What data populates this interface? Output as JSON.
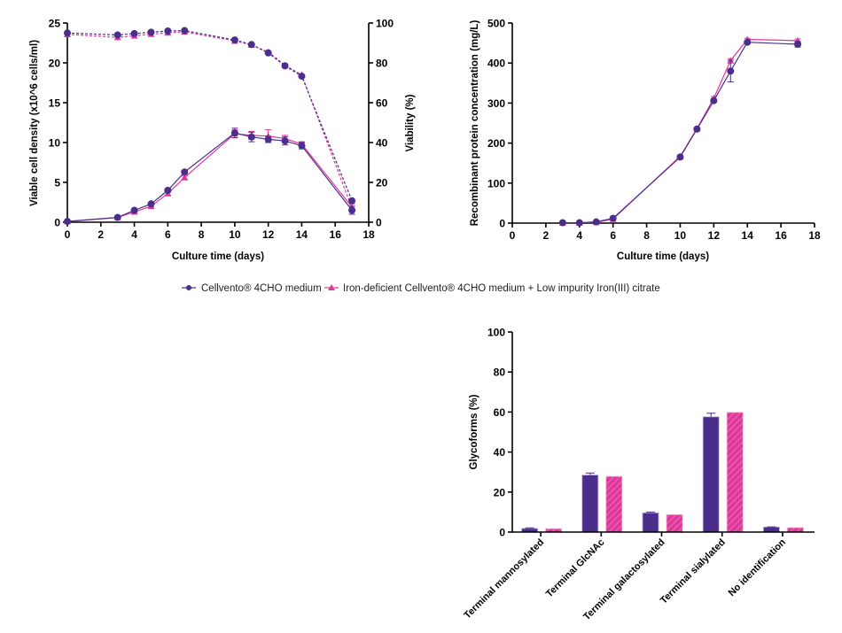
{
  "colors": {
    "series1": "#4b2d8c",
    "series2": "#e0379a",
    "series2_light": "#e97fbf"
  },
  "legend": {
    "placement": "center-middle",
    "items": [
      {
        "label": "Cellvento® 4CHO medium",
        "marker": "circle"
      },
      {
        "label": "Iron-deficient Cellvento® 4CHO medium + Low impurity Iron(III) citrate",
        "marker": "triangle"
      }
    ]
  },
  "chart_data": [
    {
      "type": "line",
      "title": "",
      "xlabel": "Culture time (days)",
      "ylabel": "Viable cell density (x10^6 cells/ml)",
      "y2label": "Viability (%)",
      "xlim": [
        0,
        18
      ],
      "ylim": [
        0,
        25
      ],
      "y2lim": [
        0,
        100
      ],
      "xticks": [
        0,
        2,
        4,
        6,
        8,
        10,
        12,
        14,
        16,
        18
      ],
      "yticks": [
        0,
        5,
        10,
        15,
        20,
        25
      ],
      "y2ticks": [
        0,
        20,
        40,
        60,
        80,
        100
      ],
      "grid": false,
      "x": [
        0,
        3,
        4,
        5,
        6,
        7,
        10,
        11,
        12,
        13,
        14,
        17
      ],
      "series": [
        {
          "name": "Cellvento® 4CHO medium - VCD",
          "axis": "left",
          "style": "solid",
          "marker": "circle",
          "values": [
            0.1,
            0.6,
            1.5,
            2.3,
            4.0,
            6.3,
            11.2,
            10.7,
            10.4,
            10.2,
            9.6,
            1.5
          ],
          "errors": [
            0,
            0.1,
            0.1,
            0.1,
            0.2,
            0.2,
            0.6,
            0.6,
            0.4,
            0.5,
            0.4,
            0.5
          ]
        },
        {
          "name": "Iron-deficient Cellvento® 4CHO medium + Low impurity Iron(III) citrate - VCD",
          "axis": "left",
          "style": "solid",
          "marker": "triangle",
          "values": [
            0.1,
            0.6,
            1.3,
            2.0,
            3.6,
            5.6,
            11.1,
            10.9,
            10.8,
            10.5,
            9.8,
            1.9
          ],
          "errors": [
            0,
            0.1,
            0.1,
            0.1,
            0.2,
            0.2,
            0.5,
            0.5,
            0.8,
            0.4,
            0.3,
            0.4
          ]
        },
        {
          "name": "Cellvento® 4CHO medium - Viability",
          "axis": "right",
          "style": "dashed",
          "marker": "circle",
          "values": [
            95.0,
            94.0,
            94.7,
            95.4,
            96.0,
            96.2,
            91.5,
            89.2,
            85.0,
            78.5,
            73.3,
            10.8
          ],
          "errors": [
            0,
            0,
            0,
            0,
            0,
            0,
            0,
            0,
            0,
            0,
            0,
            0
          ]
        },
        {
          "name": "Iron-deficient Cellvento® 4CHO medium + Low impurity Iron(III) citrate - Viability",
          "axis": "right",
          "style": "dashed",
          "marker": "triangle",
          "values": [
            94.3,
            92.8,
            93.6,
            94.4,
            95.1,
            95.6,
            91.0,
            89.0,
            85.5,
            78.8,
            74.0,
            7.0
          ],
          "errors": [
            0,
            0,
            0,
            0,
            0,
            0,
            0,
            0,
            0,
            0,
            0,
            0
          ]
        }
      ]
    },
    {
      "type": "line",
      "title": "",
      "xlabel": "Culture time (days)",
      "ylabel": "Recombinant protein concentration (mg/L)",
      "xlim": [
        0,
        18
      ],
      "ylim": [
        0,
        500
      ],
      "xticks": [
        0,
        2,
        4,
        6,
        8,
        10,
        12,
        14,
        16,
        18
      ],
      "yticks": [
        0,
        100,
        200,
        300,
        400,
        500
      ],
      "grid": false,
      "x": [
        3,
        4,
        5,
        6,
        10,
        11,
        12,
        13,
        14,
        17
      ],
      "series": [
        {
          "name": "Cellvento® 4CHO medium",
          "style": "solid",
          "marker": "circle",
          "values": [
            1,
            1,
            3,
            12,
            165,
            235,
            306,
            380,
            452,
            447
          ],
          "errors": [
            0,
            0,
            0,
            2,
            3,
            3,
            4,
            27,
            4,
            7
          ]
        },
        {
          "name": "Iron-deficient Cellvento® 4CHO medium + Low impurity Iron(III) citrate",
          "style": "solid",
          "marker": "triangle",
          "values": [
            1,
            1,
            2,
            10,
            167,
            236,
            312,
            406,
            459,
            456
          ],
          "errors": [
            0,
            0,
            0,
            2,
            3,
            3,
            4,
            5,
            3,
            4
          ]
        }
      ]
    },
    {
      "type": "bar",
      "title": "",
      "xlabel": "",
      "ylabel": "Glycoforms (%)",
      "ylim": [
        0,
        100
      ],
      "yticks": [
        0,
        20,
        40,
        60,
        80,
        100
      ],
      "grid": false,
      "categories": [
        "Terminal mannosylated",
        "Terminal GlcNAc",
        "Terminal galactosylated",
        "Terminal sialylated",
        "No identification"
      ],
      "series": [
        {
          "name": "Cellvento® 4CHO medium",
          "pattern": "solid",
          "values": [
            1.8,
            28.5,
            9.6,
            57.6,
            2.5
          ],
          "errors": [
            0.3,
            1.0,
            0.4,
            1.8,
            0.1
          ]
        },
        {
          "name": "Iron-deficient Cellvento® 4CHO medium + Low impurity Iron(III) citrate",
          "pattern": "hatched",
          "values": [
            1.7,
            27.8,
            8.7,
            59.8,
            2.2
          ],
          "errors": [
            0,
            0,
            0,
            0,
            0
          ]
        }
      ]
    }
  ]
}
